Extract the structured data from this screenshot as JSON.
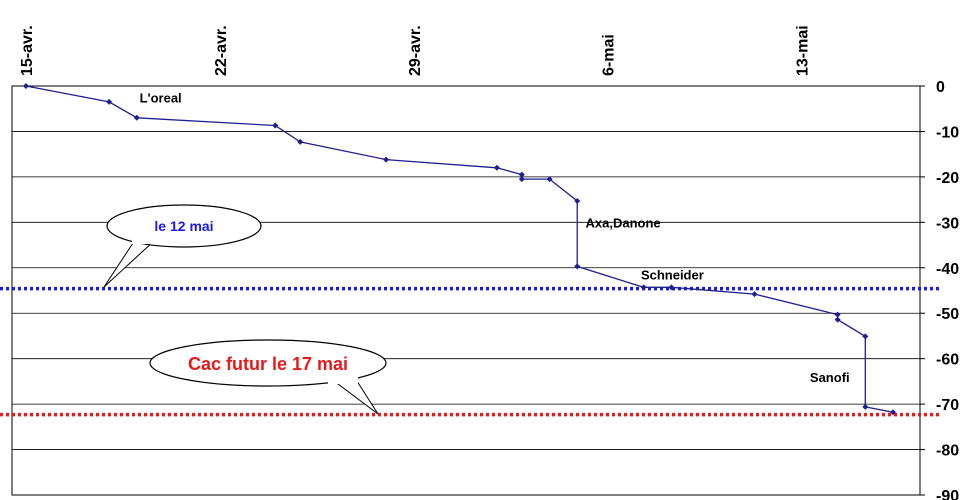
{
  "chart_data": {
    "type": "line",
    "x_tick_labels": [
      "15-avr.",
      "22-avr.",
      "29-avr.",
      "6-mai",
      "13-mai"
    ],
    "y_tick_labels": [
      "0",
      "-10",
      "-20",
      "-30",
      "-40",
      "-50",
      "-60",
      "-70",
      "-80",
      "-90"
    ],
    "ylim": [
      -90,
      0
    ],
    "xlim_days": [
      -0.5,
      24.5
    ],
    "y_ticks": [
      0,
      -10,
      -20,
      -30,
      -40,
      -50,
      -60,
      -70,
      -80,
      -90
    ],
    "grid": "horizontal",
    "series": [
      {
        "color": "#1f1f8f",
        "points": [
          [
            0,
            0
          ],
          [
            3,
            -3.5
          ],
          [
            4,
            -7
          ],
          [
            9,
            -8.7
          ],
          [
            9.9,
            -12.3
          ],
          [
            13,
            -16.2
          ],
          [
            17,
            -18
          ],
          [
            17.9,
            -19.5
          ],
          [
            17.9,
            -20.5
          ],
          [
            18.9,
            -20.5
          ],
          [
            19.9,
            -25.3
          ],
          [
            19.9,
            -39.7
          ],
          [
            22.3,
            -44.3
          ],
          [
            23.3,
            -44.3
          ],
          [
            26.3,
            -45.8
          ],
          [
            29.3,
            -50.3
          ],
          [
            29.3,
            -51.4
          ],
          [
            30.3,
            -55.1
          ],
          [
            30.3,
            -70.6
          ],
          [
            31.3,
            -71.8
          ]
        ]
      }
    ],
    "annotations": [
      {
        "text": "L'oreal",
        "x": 4.1,
        "y": -2.5
      },
      {
        "text": "Axa,Danone",
        "x": 20.2,
        "y": -30
      },
      {
        "text": "Schneider",
        "x": 22.2,
        "y": -41.5
      },
      {
        "text": "Sanofi",
        "x": 28.3,
        "y": -64
      }
    ],
    "reference_lines": [
      {
        "y": -44.6,
        "color": "#1a1ae6",
        "label": "le 12 mai",
        "label_color": "#1a1ae6"
      },
      {
        "y": -72.3,
        "color": "#e61a1a",
        "label": "Cac futur le 17 mai",
        "label_color": "#e61a1a"
      }
    ]
  }
}
